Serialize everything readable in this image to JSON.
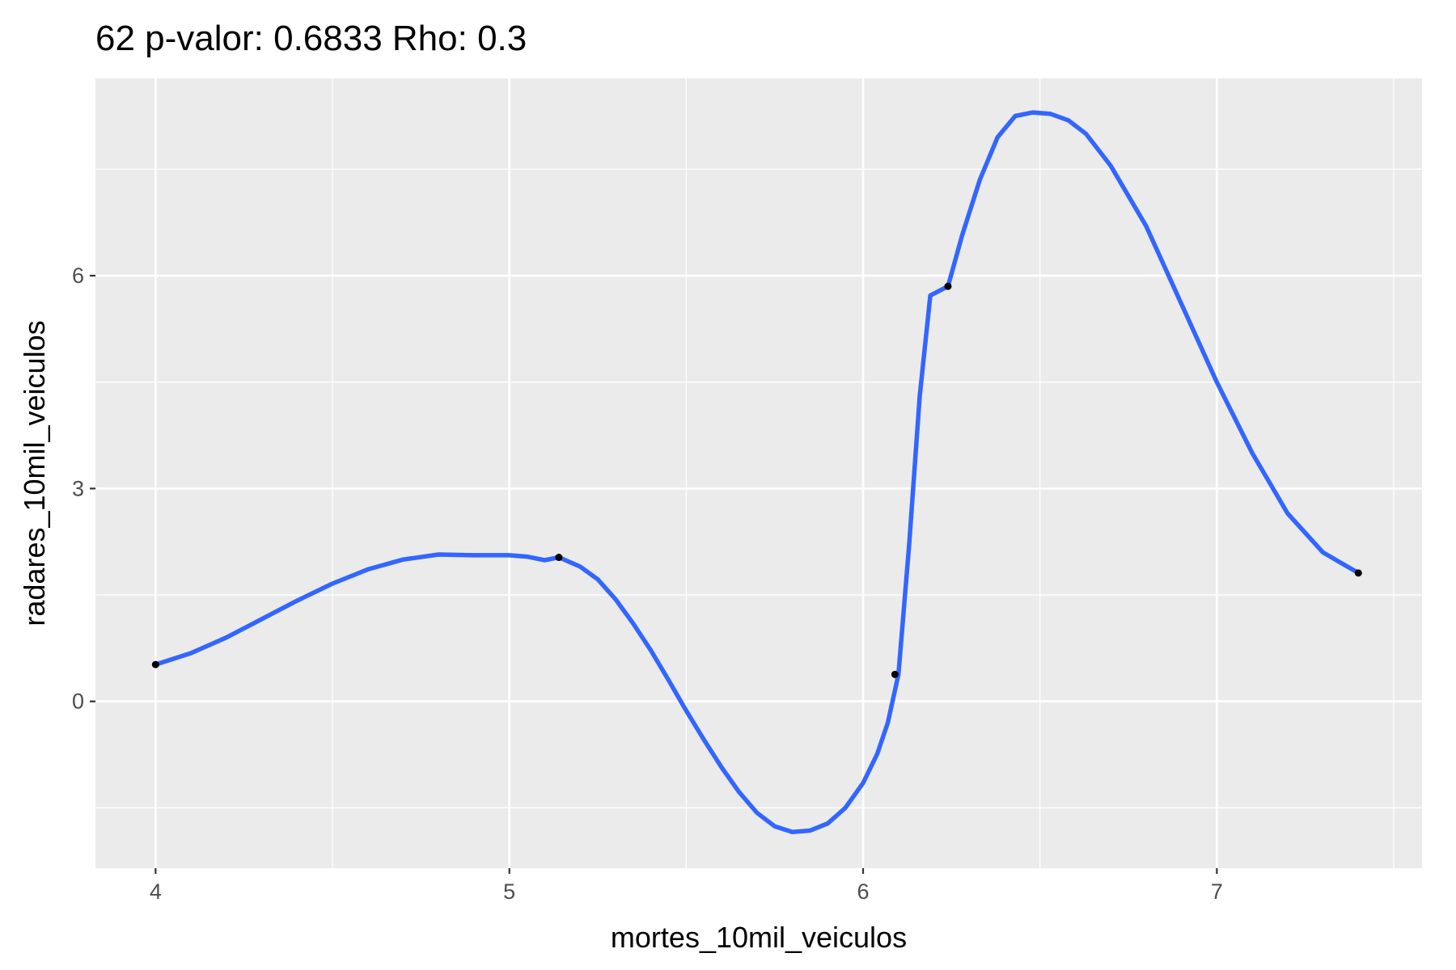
{
  "chart_data": {
    "type": "scatter",
    "title": "62 p-valor: 0.6833 Rho: 0.3",
    "xlabel": "mortes_10mil_veiculos",
    "ylabel": "radares_10mil_veiculos",
    "xlim": [
      3.83,
      7.58
    ],
    "ylim": [
      -2.35,
      8.78
    ],
    "x_ticks": [
      4,
      5,
      6,
      7
    ],
    "y_ticks": [
      0,
      3,
      6
    ],
    "x_tick_labels": [
      "4",
      "5",
      "6",
      "7"
    ],
    "y_tick_labels": [
      "0",
      "3",
      "6"
    ],
    "x_minor": [
      4.5,
      5.5,
      6.5,
      7.5
    ],
    "y_minor": [
      -1.5,
      1.5,
      4.5,
      7.5
    ],
    "grid": true,
    "points": [
      {
        "x": 4.0,
        "y": 0.52
      },
      {
        "x": 5.14,
        "y": 2.03
      },
      {
        "x": 6.09,
        "y": 0.38
      },
      {
        "x": 6.24,
        "y": 5.85
      },
      {
        "x": 7.4,
        "y": 1.81
      }
    ],
    "smooth_line": {
      "color": "#3366FF",
      "x": [
        4.0,
        4.1,
        4.2,
        4.3,
        4.4,
        4.5,
        4.6,
        4.7,
        4.8,
        4.9,
        5.0,
        5.05,
        5.1,
        5.14,
        5.2,
        5.25,
        5.3,
        5.35,
        5.4,
        5.45,
        5.5,
        5.55,
        5.6,
        5.65,
        5.7,
        5.75,
        5.8,
        5.85,
        5.9,
        5.95,
        6.0,
        6.04,
        6.07,
        6.1,
        6.13,
        6.16,
        6.19,
        6.24,
        6.28,
        6.33,
        6.38,
        6.43,
        6.48,
        6.53,
        6.58,
        6.63,
        6.7,
        6.8,
        6.9,
        7.0,
        7.1,
        7.2,
        7.3,
        7.4
      ],
      "y": [
        0.52,
        0.68,
        0.9,
        1.16,
        1.42,
        1.66,
        1.86,
        2.0,
        2.07,
        2.06,
        2.06,
        2.04,
        1.99,
        2.03,
        1.9,
        1.72,
        1.44,
        1.1,
        0.72,
        0.3,
        -0.13,
        -0.54,
        -0.93,
        -1.28,
        -1.57,
        -1.76,
        -1.84,
        -1.82,
        -1.72,
        -1.5,
        -1.15,
        -0.74,
        -0.3,
        0.38,
        2.2,
        4.3,
        5.72,
        5.85,
        6.57,
        7.35,
        7.95,
        8.25,
        8.3,
        8.28,
        8.19,
        8.0,
        7.55,
        6.7,
        5.6,
        4.5,
        3.5,
        2.65,
        2.1,
        1.81
      ]
    }
  }
}
